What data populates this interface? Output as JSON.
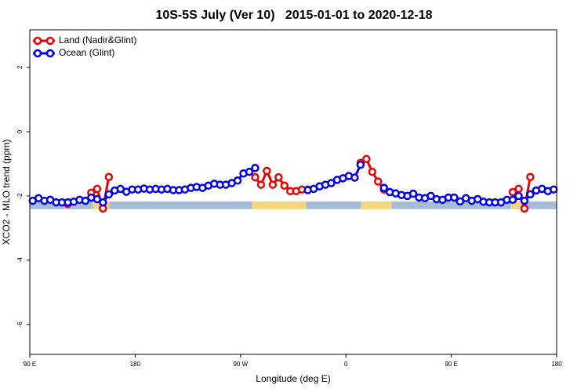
{
  "chart_data": {
    "type": "line",
    "title": "10S-5S July (Ver 10)   2015-01-01 to 2020-12-18",
    "xlabel": "Longitude (deg E)",
    "ylabel": "XCO2 - MLO trend (ppm)",
    "xlim": [
      90,
      540
    ],
    "ylim": [
      -6.93,
      3.17
    ],
    "xticks": [
      {
        "value": 90,
        "label": "90 E"
      },
      180,
      {
        "value": 270,
        "label": "90 W"
      },
      {
        "value": 360,
        "label": "0"
      },
      {
        "value": 450,
        "label": "90 E"
      },
      {
        "value": 540,
        "label": "180"
      }
    ],
    "yticks": [
      -6,
      -4,
      -2,
      0,
      2
    ],
    "legend": "top-left",
    "x": [
      92.5,
      97.5,
      102.5,
      107.5,
      112.5,
      117.5,
      122.5,
      127.5,
      132.5,
      137.5,
      142.5,
      147.5,
      152.5,
      157.5,
      162.5,
      167.5,
      172.5,
      177.5,
      182.5,
      187.5,
      192.5,
      197.5,
      202.5,
      207.5,
      212.5,
      217.5,
      222.5,
      227.5,
      232.5,
      237.5,
      242.5,
      247.5,
      252.5,
      257.5,
      262.5,
      267.5,
      272.5,
      277.5,
      282.5,
      287.5,
      292.5,
      297.5,
      302.5,
      307.5,
      312.5,
      317.5,
      322.5,
      327.5,
      332.5,
      337.5,
      342.5,
      347.5,
      352.5,
      357.5,
      362.5,
      367.5,
      372.5,
      377.5,
      382.5,
      387.5,
      392.5,
      397.5,
      402.5,
      407.5,
      412.5,
      417.5,
      422.5,
      427.5,
      432.5,
      437.5,
      442.5,
      447.5,
      452.5,
      457.5,
      462.5,
      467.5,
      472.5,
      477.5,
      482.5,
      487.5,
      492.5,
      497.5,
      502.5,
      507.5,
      512.5,
      517.5,
      522.5,
      527.5,
      532.5,
      537.5
    ],
    "series": [
      {
        "name": "Land (Nadir&Glint)",
        "color": "#ee0000",
        "values": [
          null,
          null,
          null,
          -2.12,
          null,
          null,
          -2.25,
          null,
          null,
          null,
          -1.9,
          -1.78,
          -2.39,
          -1.41,
          null,
          null,
          null,
          null,
          null,
          null,
          null,
          null,
          null,
          null,
          null,
          null,
          null,
          null,
          null,
          null,
          null,
          null,
          null,
          null,
          null,
          null,
          null,
          null,
          -1.42,
          -1.65,
          -1.22,
          -1.65,
          -1.42,
          -1.68,
          -1.85,
          -1.85,
          -1.8,
          -1.8,
          null,
          null,
          null,
          null,
          null,
          null,
          null,
          null,
          -0.97,
          -0.85,
          -1.25,
          -1.55,
          -1.8,
          -1.88,
          null,
          null,
          null,
          null,
          null,
          null,
          null,
          null,
          null,
          null,
          null,
          null,
          null,
          null,
          null,
          null,
          null,
          null,
          null,
          null,
          -1.88,
          -1.78,
          -2.39,
          -1.41,
          null,
          null,
          null,
          null
        ]
      },
      {
        "name": "Ocean (Glint)",
        "color": "#0000ee",
        "values": [
          -2.15,
          -2.07,
          -2.15,
          -2.12,
          -2.2,
          -2.2,
          -2.2,
          -2.18,
          -2.12,
          -2.15,
          -2.05,
          -2.1,
          -2.2,
          -1.95,
          -1.83,
          -1.78,
          -1.87,
          -1.8,
          -1.8,
          -1.77,
          -1.8,
          -1.78,
          -1.8,
          -1.78,
          -1.82,
          -1.82,
          -1.8,
          -1.75,
          -1.72,
          -1.75,
          -1.68,
          -1.62,
          -1.65,
          -1.65,
          -1.6,
          -1.52,
          -1.3,
          -1.25,
          -1.13,
          null,
          null,
          null,
          null,
          null,
          null,
          null,
          null,
          -1.82,
          -1.78,
          -1.7,
          -1.65,
          -1.6,
          -1.5,
          -1.45,
          -1.38,
          -1.43,
          -1.03,
          null,
          null,
          null,
          -1.75,
          -1.88,
          -1.92,
          -1.97,
          -2.0,
          -1.93,
          -2.05,
          -2.07,
          -2.0,
          -2.1,
          -2.12,
          -2.05,
          -2.05,
          -2.17,
          -2.07,
          -2.15,
          -2.1,
          -2.18,
          -2.2,
          -2.2,
          -2.2,
          -2.12,
          -2.12,
          -2.0,
          -2.15,
          -1.95,
          -1.83,
          -1.78,
          -1.85,
          -1.8
        ]
      }
    ],
    "surface_band": {
      "range": [
        -2.41,
        -2.17
      ],
      "segments": [
        {
          "from": 90,
          "to": 144,
          "color": "#a6bcd9"
        },
        {
          "from": 144,
          "to": 158,
          "color": "#f7d57a"
        },
        {
          "from": 158,
          "to": 280,
          "color": "#a6bcd9"
        },
        {
          "from": 280,
          "to": 326,
          "color": "#f7d57a"
        },
        {
          "from": 326,
          "to": 373,
          "color": "#a6bcd9"
        },
        {
          "from": 373,
          "to": 399,
          "color": "#f7d57a"
        },
        {
          "from": 399,
          "to": 501,
          "color": "#a6bcd9"
        },
        {
          "from": 501,
          "to": 512,
          "color": "#f7d57a"
        },
        {
          "from": 512,
          "to": 540,
          "color": "#a6bcd9"
        }
      ]
    }
  }
}
